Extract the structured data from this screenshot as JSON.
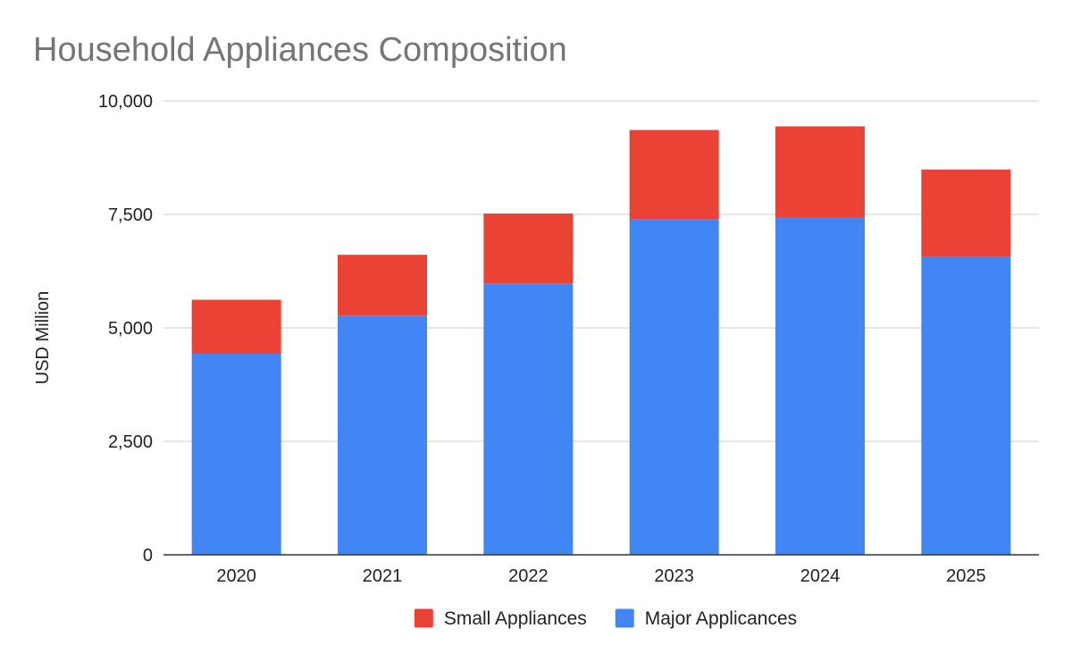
{
  "chart_data": {
    "type": "bar",
    "stacked": true,
    "title": "Household Appliances Composition",
    "xlabel": "",
    "ylabel": "USD Million",
    "categories": [
      "2020",
      "2021",
      "2022",
      "2023",
      "2024",
      "2025"
    ],
    "series": [
      {
        "name": "Major Applicances",
        "color": "#4285F4",
        "values": [
          4430,
          5270,
          5980,
          7400,
          7430,
          6560
        ]
      },
      {
        "name": "Small Appliances",
        "color": "#EA4335",
        "values": [
          1190,
          1340,
          1540,
          1960,
          2010,
          1930
        ]
      }
    ],
    "ylim": [
      0,
      10000
    ],
    "yticks": [
      0,
      2500,
      5000,
      7500,
      10000
    ],
    "ytick_labels": [
      "0",
      "2,500",
      "5,000",
      "7,500",
      "10,000"
    ],
    "grid": true,
    "legend_position": "bottom",
    "legend_order": [
      "Small Appliances",
      "Major Applicances"
    ]
  }
}
